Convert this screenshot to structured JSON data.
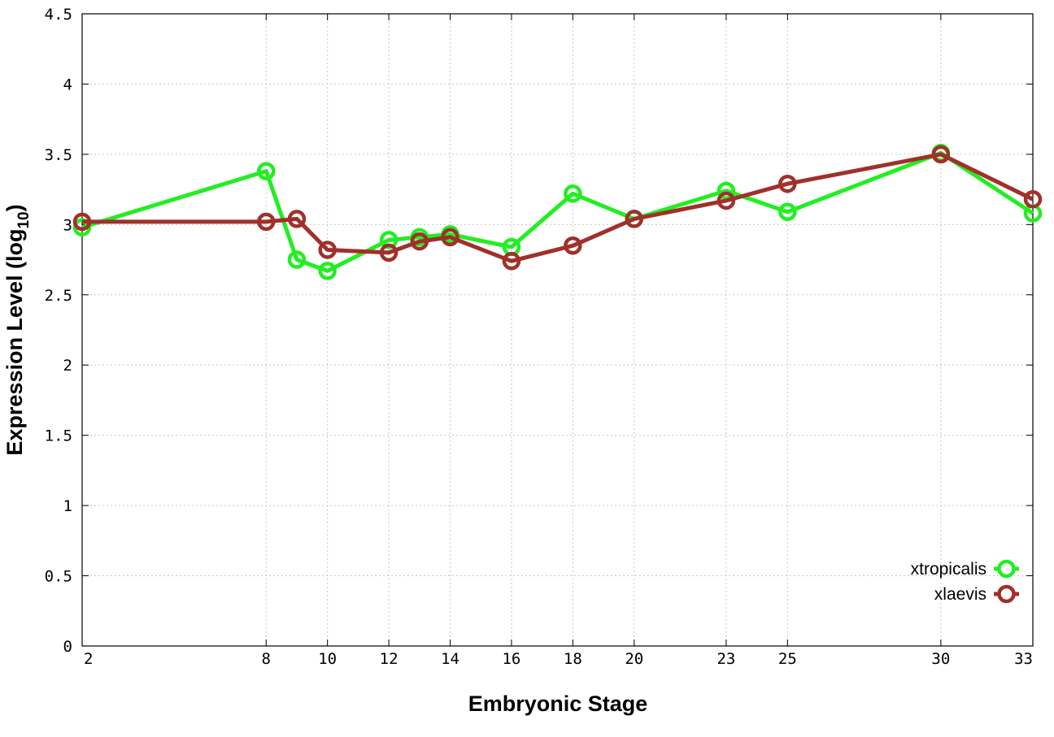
{
  "chart_data": {
    "type": "line",
    "xlabel": "Embryonic Stage",
    "ylabel_main": "Expression Level (log",
    "ylabel_sub": "10",
    "ylabel_close": ")",
    "xlim": [
      2,
      33
    ],
    "ylim": [
      0,
      4.5
    ],
    "x_ticks": [
      2,
      8,
      10,
      12,
      14,
      16,
      18,
      20,
      23,
      25,
      30,
      33
    ],
    "x_tick_labels": [
      "2",
      "8",
      "10",
      "12",
      "14",
      "16",
      "18",
      "20",
      "23",
      "25",
      "30",
      "33"
    ],
    "y_ticks": [
      0,
      0.5,
      1,
      1.5,
      2,
      2.5,
      3,
      3.5,
      4,
      4.5
    ],
    "y_tick_labels": [
      "0",
      "0.5",
      "1",
      "1.5",
      "2",
      "2.5",
      "3",
      "3.5",
      "4",
      "4.5"
    ],
    "grid": true,
    "legend_position": "bottom-right",
    "series": [
      {
        "name": "xtropicalis",
        "color": "#22ee22",
        "x": [
          2,
          8,
          9,
          10,
          12,
          13,
          14,
          16,
          18,
          20,
          23,
          25,
          30,
          33
        ],
        "y": [
          2.98,
          3.38,
          2.75,
          2.67,
          2.89,
          2.91,
          2.93,
          2.84,
          3.22,
          3.04,
          3.24,
          3.09,
          3.51,
          3.08
        ]
      },
      {
        "name": "xlaevis",
        "color": "#a0302a",
        "x": [
          2,
          8,
          9,
          10,
          12,
          13,
          14,
          16,
          18,
          20,
          23,
          25,
          30,
          33
        ],
        "y": [
          3.02,
          3.02,
          3.04,
          2.82,
          2.8,
          2.88,
          2.91,
          2.74,
          2.85,
          3.04,
          3.17,
          3.29,
          3.5,
          3.18
        ]
      }
    ]
  }
}
